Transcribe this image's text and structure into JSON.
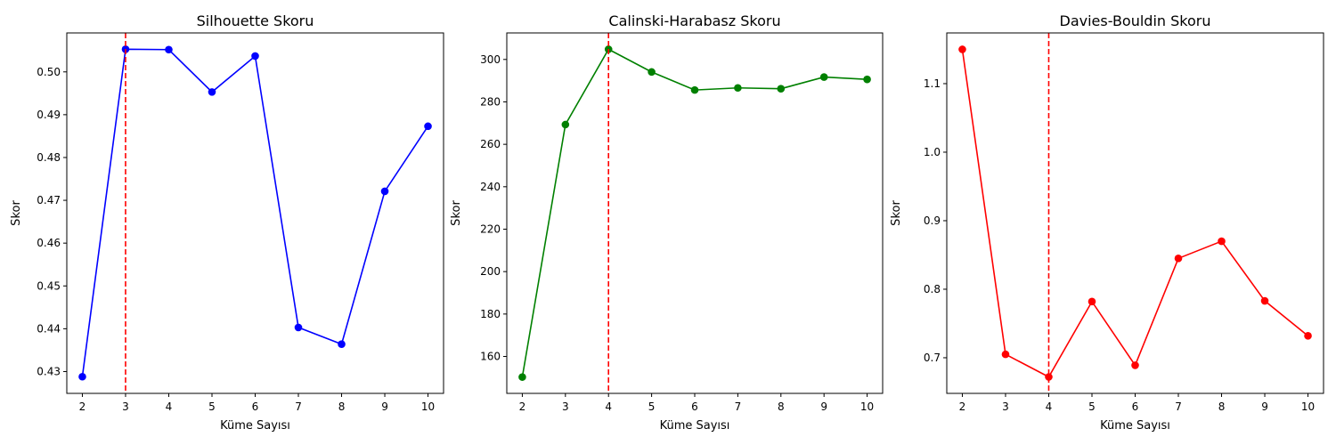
{
  "chart_data": [
    {
      "type": "line",
      "title": "Silhouette Skoru",
      "xlabel": "Küme Sayısı",
      "ylabel": "Skor",
      "x": [
        2,
        3,
        4,
        5,
        6,
        7,
        8,
        9,
        10
      ],
      "values": [
        0.4288,
        0.5053,
        0.5052,
        0.4953,
        0.5037,
        0.4403,
        0.4364,
        0.4721,
        0.4873
      ],
      "xlim": [
        1.64,
        10.36
      ],
      "ylim": [
        0.4249,
        0.5091
      ],
      "xticks": [
        2,
        3,
        4,
        5,
        6,
        7,
        8,
        9,
        10
      ],
      "xtick_labels": [
        "2",
        "3",
        "4",
        "5",
        "6",
        "7",
        "8",
        "9",
        "10"
      ],
      "yticks": [
        0.43,
        0.44,
        0.45,
        0.46,
        0.47,
        0.48,
        0.49,
        0.5
      ],
      "ytick_labels": [
        "0.43",
        "0.44",
        "0.45",
        "0.46",
        "0.47",
        "0.48",
        "0.49",
        "0.50"
      ],
      "color": "#0000ff",
      "vline": {
        "x": 3,
        "color": "#ff0000",
        "style": "dashed"
      },
      "grid": false
    },
    {
      "type": "line",
      "title": "Calinski-Harabasz Skoru",
      "xlabel": "Küme Sayısı",
      "ylabel": "Skor",
      "x": [
        2,
        3,
        4,
        5,
        6,
        7,
        8,
        9,
        10
      ],
      "values": [
        150.3,
        269.3,
        304.8,
        294.1,
        285.6,
        286.6,
        286.2,
        291.7,
        290.6
      ],
      "xlim": [
        1.64,
        10.36
      ],
      "ylim": [
        142.6,
        312.5
      ],
      "xticks": [
        2,
        3,
        4,
        5,
        6,
        7,
        8,
        9,
        10
      ],
      "xtick_labels": [
        "2",
        "3",
        "4",
        "5",
        "6",
        "7",
        "8",
        "9",
        "10"
      ],
      "yticks": [
        160,
        180,
        200,
        220,
        240,
        260,
        280,
        300
      ],
      "ytick_labels": [
        "160",
        "180",
        "200",
        "220",
        "240",
        "260",
        "280",
        "300"
      ],
      "color": "#008000",
      "vline": {
        "x": 4,
        "color": "#ff0000",
        "style": "dashed"
      },
      "grid": false
    },
    {
      "type": "line",
      "title": "Davies-Bouldin Skoru",
      "xlabel": "Küme Sayısı",
      "ylabel": "Skor",
      "x": [
        2,
        3,
        4,
        5,
        6,
        7,
        8,
        9,
        10
      ],
      "values": [
        1.15,
        0.705,
        0.672,
        0.782,
        0.689,
        0.845,
        0.87,
        0.783,
        0.732
      ],
      "xlim": [
        1.64,
        10.36
      ],
      "ylim": [
        0.648,
        1.174
      ],
      "xticks": [
        2,
        3,
        4,
        5,
        6,
        7,
        8,
        9,
        10
      ],
      "xtick_labels": [
        "2",
        "3",
        "4",
        "5",
        "6",
        "7",
        "8",
        "9",
        "10"
      ],
      "yticks": [
        0.7,
        0.8,
        0.9,
        1.0,
        1.1
      ],
      "ytick_labels": [
        "0.7",
        "0.8",
        "0.9",
        "1.0",
        "1.1"
      ],
      "color": "#ff0000",
      "vline": {
        "x": 4,
        "color": "#ff0000",
        "style": "dashed"
      },
      "grid": false
    }
  ]
}
